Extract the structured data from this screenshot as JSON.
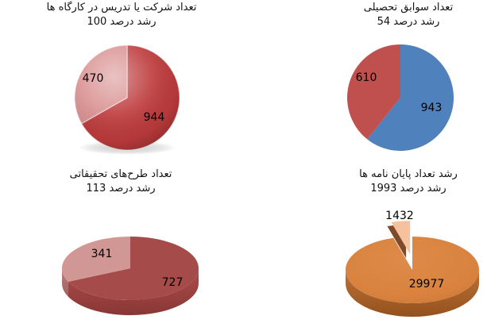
{
  "page": {
    "background": "#ffffff"
  },
  "chart_data": [
    {
      "type": "pie",
      "title": "تعداد شرکت یا تدریس در کارگاه ها",
      "subtitle": "رشد درصد 100",
      "growth_percent": 100,
      "values": [
        944,
        470
      ],
      "data_labels": [
        "944",
        "470"
      ],
      "colors": [
        "#be3b3c",
        "#d99091"
      ],
      "style": "glossy-2d",
      "start_angle_deg": 0,
      "clockwise": true,
      "legend": "none"
    },
    {
      "type": "pie",
      "title": "تعداد سوابق تحصیلی",
      "subtitle": "رشد درصد 54",
      "growth_percent": 54,
      "values": [
        943,
        610
      ],
      "data_labels": [
        "943",
        "610"
      ],
      "colors": [
        "#4f81bd",
        "#c0504d"
      ],
      "style": "flat-2d",
      "start_angle_deg": 0,
      "clockwise": true,
      "legend": "none"
    },
    {
      "type": "pie",
      "title": "تعداد طرح‌های تحقیقاتی",
      "subtitle": "رشد درصد 113",
      "growth_percent": 113,
      "values": [
        727,
        341
      ],
      "data_labels": [
        "727",
        "341"
      ],
      "colors": [
        "#a54b49",
        "#d09795"
      ],
      "style": "3d",
      "start_angle_deg": 0,
      "clockwise": true,
      "legend": "none"
    },
    {
      "type": "pie",
      "title": "رشد تعداد پایان نامه ها",
      "subtitle": "رشد درصد 1993",
      "growth_percent": 1993,
      "values": [
        29977,
        1432
      ],
      "data_labels": [
        "29977",
        "1432"
      ],
      "colors": [
        "#d9823f",
        "#f5c29d"
      ],
      "exploded": [
        false,
        true
      ],
      "style": "3d",
      "start_angle_deg": 0,
      "clockwise": true,
      "legend": "none"
    }
  ]
}
